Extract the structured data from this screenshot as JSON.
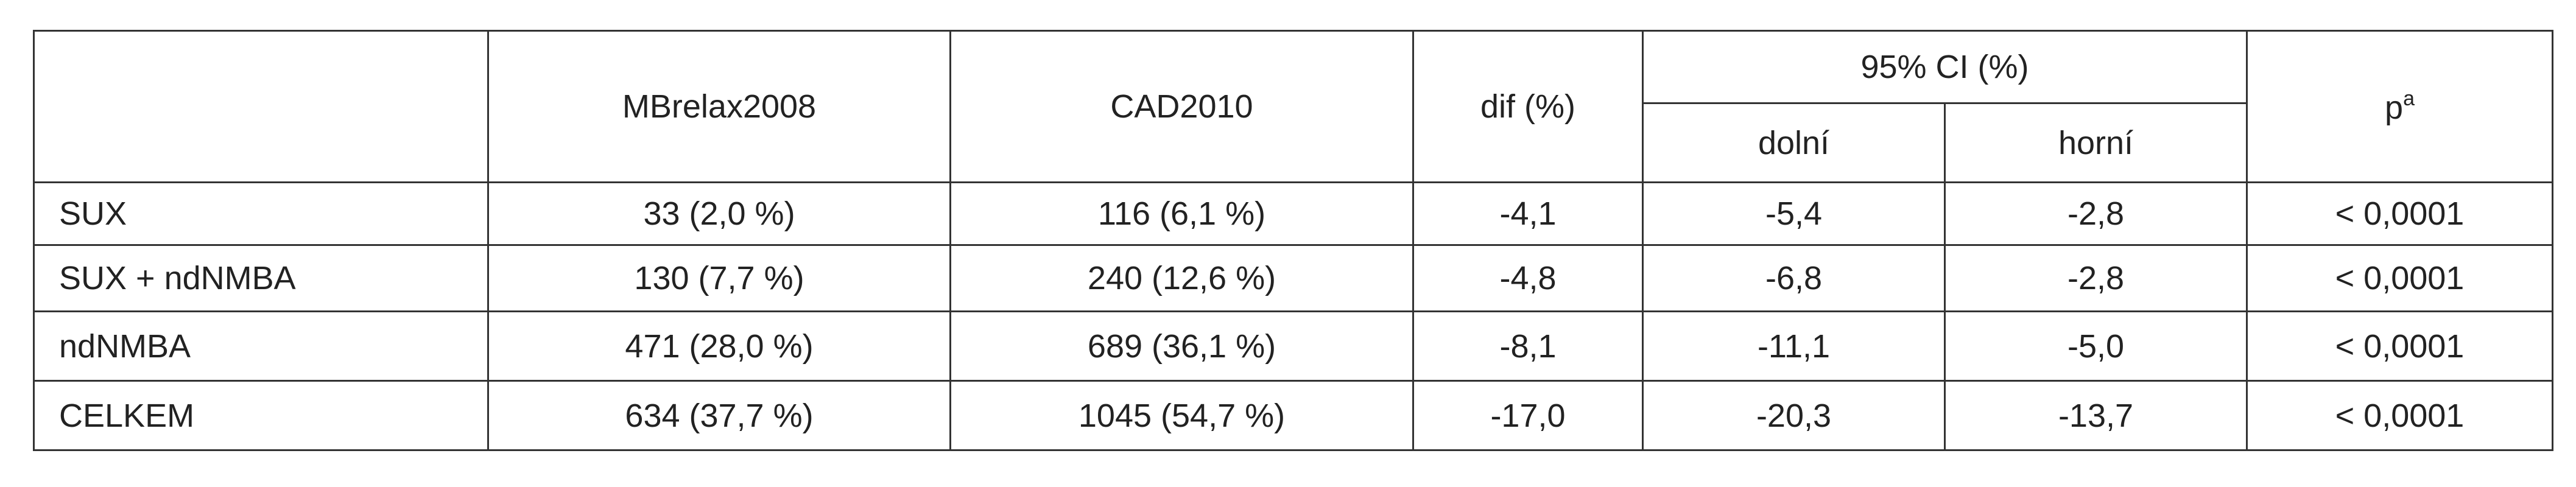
{
  "table": {
    "header": {
      "columns": [
        "MBrelax2008",
        "CAD2010",
        "dif (%)",
        "95% CI (%)"
      ],
      "ci_sub": [
        "dolní",
        "horní"
      ],
      "p": "p",
      "p_sup": "a"
    },
    "rows": [
      [
        "SUX",
        "33 (2,0 %)",
        "116 (6,1 %)",
        "-4,1",
        "-5,4",
        "-2,8",
        "< 0,0001"
      ],
      [
        "SUX + ndNMBA",
        "130 (7,7 %)",
        "240 (12,6 %)",
        "-4,8",
        "-6,8",
        "-2,8",
        "< 0,0001"
      ],
      [
        "ndNMBA",
        "471 (28,0 %)",
        "689 (36,1 %)",
        "-8,1",
        "-11,1",
        "-5,0",
        "< 0,0001"
      ],
      [
        "CELKEM",
        "634 (37,7 %)",
        "1045 (54,7 %)",
        "-17,0",
        "-20,3",
        "-13,7",
        "< 0,0001"
      ]
    ]
  }
}
